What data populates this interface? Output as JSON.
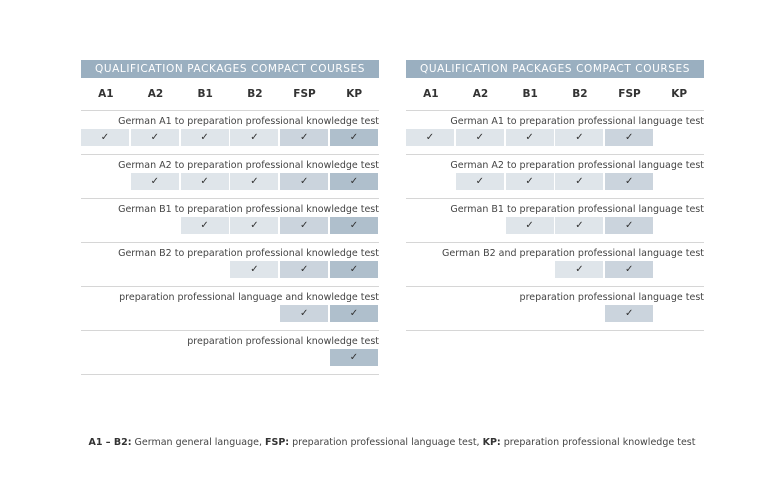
{
  "colors": {
    "header": "#9aafc0",
    "general": "#dfe5ea",
    "fsp": "#cbd4dd",
    "kp": "#afbfcc"
  },
  "check_icon": "✓",
  "tables": [
    {
      "title": "QUALIFICATION PACKAGES COMPACT COURSES",
      "columns": [
        "A1",
        "A2",
        "B1",
        "B2",
        "FSP",
        "KP"
      ],
      "rows": [
        {
          "label": "German A1 to preparation professional knowledge test",
          "from": 0,
          "to": 5
        },
        {
          "label": "German A2 to preparation professional knowledge test",
          "from": 1,
          "to": 5
        },
        {
          "label": "German B1 to preparation professional knowledge test",
          "from": 2,
          "to": 5
        },
        {
          "label": "German B2 to preparation professional knowledge test",
          "from": 3,
          "to": 5
        },
        {
          "label": "preparation professional language and knowledge test",
          "from": 4,
          "to": 5
        },
        {
          "label": "preparation professional knowledge test",
          "from": 5,
          "to": 5
        }
      ]
    },
    {
      "title": "QUALIFICATION PACKAGES COMPACT COURSES",
      "columns": [
        "A1",
        "A2",
        "B1",
        "B2",
        "FSP",
        "KP"
      ],
      "rows": [
        {
          "label": "German A1 to preparation professional language test",
          "from": 0,
          "to": 4
        },
        {
          "label": "German A2 to preparation professional language test",
          "from": 1,
          "to": 4
        },
        {
          "label": "German B1 to preparation professional language test",
          "from": 2,
          "to": 4
        },
        {
          "label": "German B2 and preparation professional language test",
          "from": 3,
          "to": 4
        },
        {
          "label": "preparation professional language test",
          "from": 4,
          "to": 4
        }
      ]
    }
  ],
  "footnote": [
    {
      "term": "A1 – B2:",
      "text": " German general language, "
    },
    {
      "term": "FSP:",
      "text": " preparation professional language test, "
    },
    {
      "term": "KP:",
      "text": " preparation professional knowledge test"
    }
  ]
}
